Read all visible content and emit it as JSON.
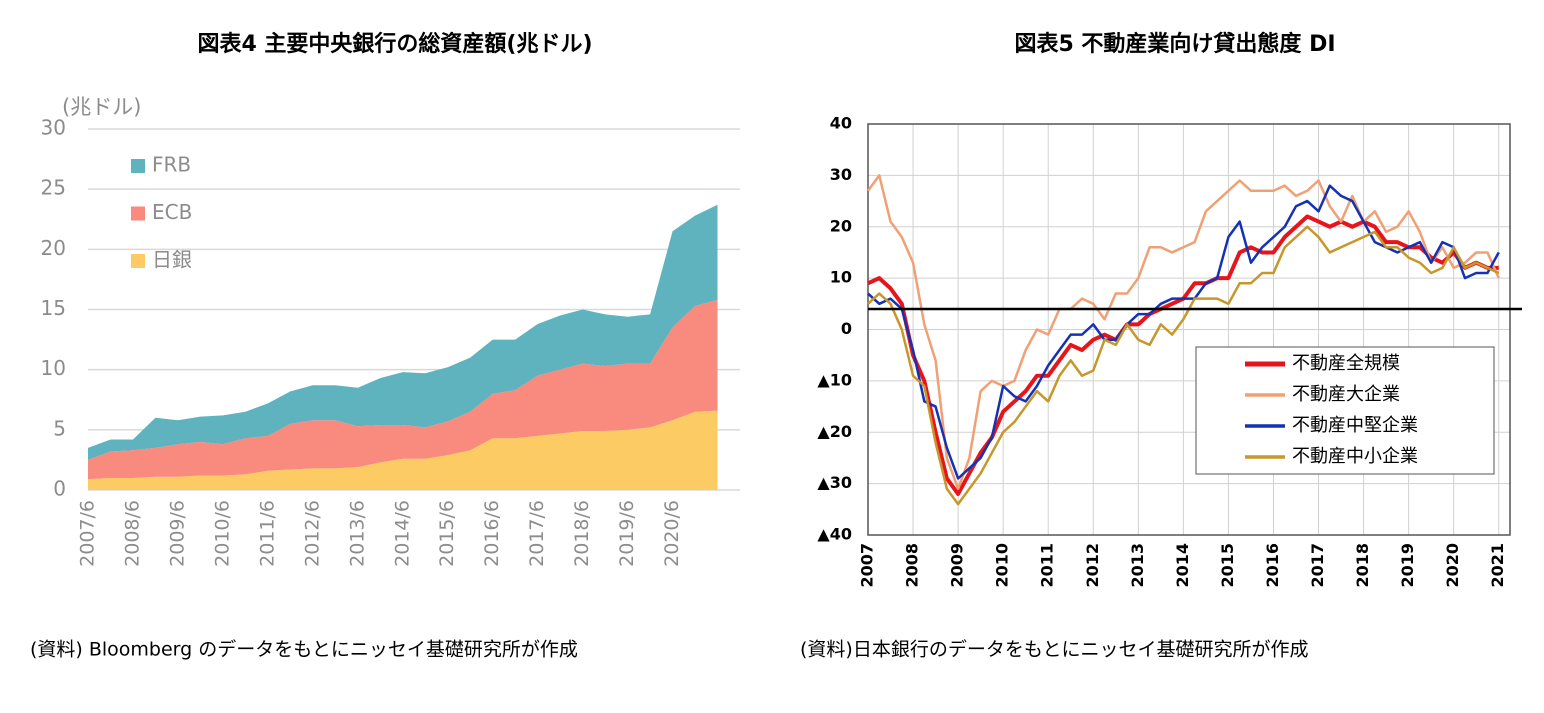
{
  "chart_data": [
    {
      "type": "area",
      "title": "図表4 主要中央銀行の総資産額(兆ドル)",
      "ylabel": "(兆ドル)",
      "source": "(資料) Bloomberg のデータをもとにニッセイ基礎研究所が作成",
      "categories": [
        "2007/6",
        null,
        "2008/6",
        null,
        "2009/6",
        null,
        "2010/6",
        null,
        "2011/6",
        null,
        "2012/6",
        null,
        "2013/6",
        null,
        "2014/6",
        null,
        "2015/6",
        null,
        "2016/6",
        null,
        "2017/6",
        null,
        "2018/6",
        null,
        "2019/6",
        null,
        "2020/6",
        null,
        null
      ],
      "series": [
        {
          "name": "日銀",
          "color": "#fdcb64",
          "values": [
            0.9,
            1.0,
            1.0,
            1.1,
            1.1,
            1.2,
            1.2,
            1.3,
            1.6,
            1.7,
            1.8,
            1.8,
            1.9,
            2.3,
            2.6,
            2.6,
            2.9,
            3.3,
            4.3,
            4.3,
            4.5,
            4.7,
            4.9,
            4.9,
            5.0,
            5.2,
            5.8,
            6.5,
            6.6
          ]
        },
        {
          "name": "ECB",
          "color": "#f88a7e",
          "values": [
            1.6,
            2.2,
            2.3,
            2.4,
            2.7,
            2.8,
            2.6,
            3.0,
            2.9,
            3.8,
            4.0,
            4.0,
            3.4,
            3.1,
            2.8,
            2.6,
            2.8,
            3.2,
            3.7,
            4.0,
            5.0,
            5.3,
            5.6,
            5.4,
            5.5,
            5.3,
            7.7,
            8.8,
            9.2
          ]
        },
        {
          "name": "FRB",
          "color": "#5fb3bf",
          "values": [
            1.0,
            1.0,
            0.9,
            2.5,
            2.0,
            2.1,
            2.4,
            2.2,
            2.7,
            2.7,
            2.9,
            2.9,
            3.2,
            3.9,
            4.4,
            4.5,
            4.5,
            4.5,
            4.5,
            4.2,
            4.3,
            4.5,
            4.5,
            4.3,
            3.9,
            4.1,
            8.0,
            7.5,
            7.9
          ]
        }
      ],
      "ylim": [
        0,
        30
      ],
      "yticks": [
        0,
        5,
        10,
        15,
        20,
        25,
        30
      ],
      "grid": true,
      "legend": "upper left"
    },
    {
      "type": "line",
      "title": "図表5 不動産業向け貸出態度 DI",
      "source": "(資料)日本銀行のデータをもとにニッセイ基礎研究所が作成",
      "x": [
        2007,
        2007.25,
        2007.5,
        2007.75,
        2008,
        2008.25,
        2008.5,
        2008.75,
        2009,
        2009.25,
        2009.5,
        2009.75,
        2010,
        2010.25,
        2010.5,
        2010.75,
        2011,
        2011.25,
        2011.5,
        2011.75,
        2012,
        2012.25,
        2012.5,
        2012.75,
        2013,
        2013.25,
        2013.5,
        2013.75,
        2014,
        2014.25,
        2014.5,
        2014.75,
        2015,
        2015.25,
        2015.5,
        2015.75,
        2016,
        2016.25,
        2016.5,
        2016.75,
        2017,
        2017.25,
        2017.5,
        2017.75,
        2018,
        2018.25,
        2018.5,
        2018.75,
        2019,
        2019.25,
        2019.5,
        2019.75,
        2020,
        2020.25,
        2020.5,
        2020.75,
        2021
      ],
      "series": [
        {
          "name": "不動産全規模",
          "color": "#e8141b",
          "width": 4,
          "values": [
            9,
            10,
            8,
            5,
            -5,
            -10,
            -20,
            -29,
            -32,
            -28,
            -24,
            -21,
            -16,
            -14,
            -12,
            -9,
            -9,
            -6,
            -3,
            -4,
            -2,
            -1,
            -2,
            1,
            1,
            3,
            4,
            5,
            6,
            9,
            9,
            10,
            10,
            15,
            16,
            15,
            15,
            18,
            20,
            22,
            21,
            20,
            21,
            20,
            21,
            20,
            17,
            17,
            16,
            16,
            14,
            13,
            15,
            12,
            13,
            12,
            12
          ]
        },
        {
          "name": "不動産大企業",
          "color": "#f0a074",
          "width": 2.5,
          "values": [
            27,
            30,
            21,
            18,
            13,
            1,
            -6,
            -25,
            -31,
            -25,
            -12,
            -10,
            -11,
            -10,
            -4,
            0,
            -1,
            4,
            4,
            6,
            5,
            2,
            7,
            7,
            10,
            16,
            16,
            15,
            16,
            17,
            23,
            25,
            27,
            29,
            27,
            27,
            27,
            28,
            26,
            27,
            29,
            24,
            21,
            26,
            21,
            23,
            19,
            20,
            23,
            19,
            13,
            16,
            12,
            13,
            15,
            15,
            10
          ]
        },
        {
          "name": "不動産中堅企業",
          "color": "#1432b4",
          "width": 2.5,
          "values": [
            7,
            5,
            6,
            4,
            -4,
            -14,
            -15,
            -23,
            -29,
            -27,
            -25,
            -21,
            -11,
            -13,
            -14,
            -11,
            -7,
            -4,
            -1,
            -1,
            1,
            -2,
            -2,
            1,
            3,
            3,
            5,
            6,
            6,
            6,
            9,
            10,
            18,
            21,
            13,
            16,
            18,
            20,
            24,
            25,
            23,
            28,
            26,
            25,
            21,
            17,
            16,
            15,
            16,
            17,
            13,
            17,
            16,
            10,
            11,
            11,
            15
          ]
        },
        {
          "name": "不動産中小企業",
          "color": "#c8962a",
          "width": 2.5,
          "values": [
            5,
            7,
            5,
            0,
            -9,
            -11,
            -22,
            -31,
            -34,
            -31,
            -28,
            -24,
            -20,
            -18,
            -15,
            -12,
            -14,
            -9,
            -6,
            -9,
            -8,
            -2,
            -3,
            1,
            -2,
            -3,
            1,
            -1,
            2,
            6,
            6,
            6,
            5,
            9,
            9,
            11,
            11,
            16,
            18,
            20,
            18,
            15,
            16,
            17,
            18,
            19,
            16,
            16,
            14,
            13,
            11,
            12,
            16,
            12,
            13,
            12,
            11
          ]
        }
      ],
      "hline": 4,
      "xlim": [
        2007,
        2021.25
      ],
      "xticks": [
        2007,
        2008,
        2009,
        2010,
        2011,
        2012,
        2013,
        2014,
        2015,
        2016,
        2017,
        2018,
        2019,
        2020,
        2021
      ],
      "ylim": [
        -40,
        40
      ],
      "yticks": [
        {
          "value": -40,
          "label": "▲40"
        },
        {
          "value": -30,
          "label": "▲30"
        },
        {
          "value": -20,
          "label": "▲20"
        },
        {
          "value": -10,
          "label": "▲10"
        },
        0,
        10,
        20,
        30,
        40
      ],
      "grid": true,
      "legend": "lower right"
    }
  ]
}
